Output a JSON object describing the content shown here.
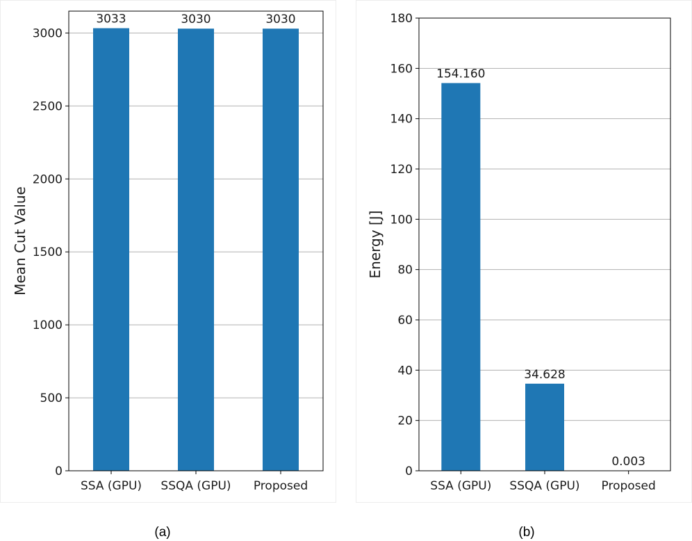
{
  "chart_data": [
    {
      "type": "bar",
      "panel": "a",
      "caption": "(a)",
      "categories": [
        "SSA (GPU)",
        "SSQA (GPU)",
        "Proposed"
      ],
      "values": [
        3033,
        3030,
        3030
      ],
      "value_labels": [
        "3033",
        "3030",
        "3030"
      ],
      "title": "",
      "xlabel": "",
      "ylabel": "Mean Cut Value",
      "ylim": [
        0,
        3150
      ],
      "yticks": [
        0,
        500,
        1000,
        1500,
        2000,
        2500,
        3000
      ],
      "grid": true,
      "bar_color": "#1f77b4"
    },
    {
      "type": "bar",
      "panel": "b",
      "caption": "(b)",
      "categories": [
        "SSA (GPU)",
        "SSQA (GPU)",
        "Proposed"
      ],
      "values": [
        154.16,
        34.628,
        0.003
      ],
      "value_labels": [
        "154.160",
        "34.628",
        "0.003"
      ],
      "title": "",
      "xlabel": "",
      "ylabel": "Energy [J]",
      "ylim": [
        0,
        180
      ],
      "yticks": [
        0,
        20,
        40,
        60,
        80,
        100,
        120,
        140,
        160,
        180
      ],
      "grid": true,
      "bar_color": "#1f77b4"
    }
  ]
}
